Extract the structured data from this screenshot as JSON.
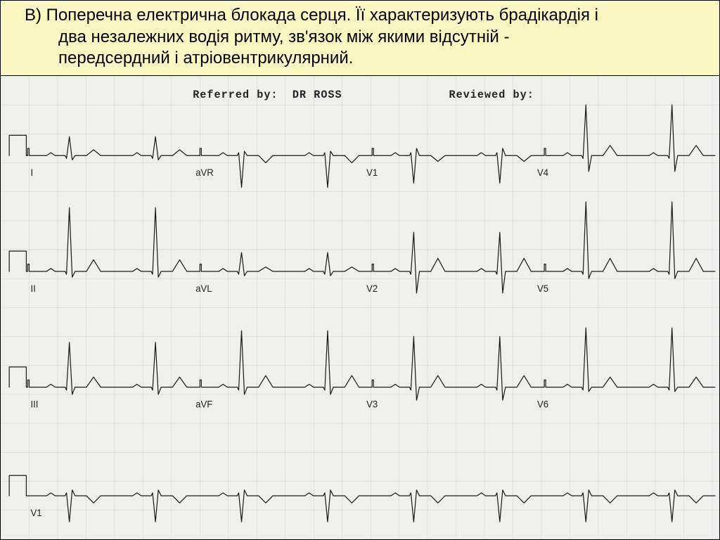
{
  "answer": {
    "background_color": "#fbf7c2",
    "text": "В) Поперечна електрична блокада серця. Її характеризують брадікардія і\n   два незалежних водія ритму, зв'язок між якими відсутній -\n   передсердний і атріовентрикулярний."
  },
  "ecg": {
    "background_color": "#efefed",
    "trace_color": "#1a1a1a",
    "grid_color": "#d0d0cc",
    "header": {
      "referred_label": "Referred by:",
      "referred_value": "DR ROSS",
      "reviewed_label": "Reviewed by:"
    },
    "viewbox_w": 1010,
    "viewbox_h": 640,
    "row_baselines": [
      110,
      270,
      430,
      580
    ],
    "cal_pulse": {
      "width": 24,
      "height": 28
    },
    "trace_x_start": 6,
    "trace_x_end": 1004,
    "segment_column_x": [
      42,
      274,
      514,
      754
    ],
    "rows": [
      {
        "leads": [
          "I",
          "aVR",
          "V1",
          "V4"
        ],
        "r_height": [
          26,
          -44,
          -38,
          70
        ],
        "s_depth": [
          -6,
          6,
          10,
          -22
        ],
        "t_height": [
          8,
          -10,
          -8,
          14
        ],
        "beats_per_seg": 2
      },
      {
        "leads": [
          "II",
          "aVL",
          "V2",
          "V5"
        ],
        "r_height": [
          88,
          26,
          54,
          96
        ],
        "s_depth": [
          -8,
          -6,
          -30,
          -10
        ],
        "t_height": [
          16,
          6,
          18,
          18
        ],
        "beats_per_seg": 2
      },
      {
        "leads": [
          "III",
          "aVF",
          "V3",
          "V6"
        ],
        "r_height": [
          62,
          78,
          70,
          82
        ],
        "s_depth": [
          -10,
          -10,
          -18,
          -6
        ],
        "t_height": [
          14,
          16,
          16,
          14
        ],
        "beats_per_seg": 2
      },
      {
        "leads": [
          "V1"
        ],
        "r_height": [
          -36
        ],
        "s_depth": [
          8
        ],
        "t_height": [
          -10
        ],
        "beats_per_seg": 8
      }
    ]
  }
}
